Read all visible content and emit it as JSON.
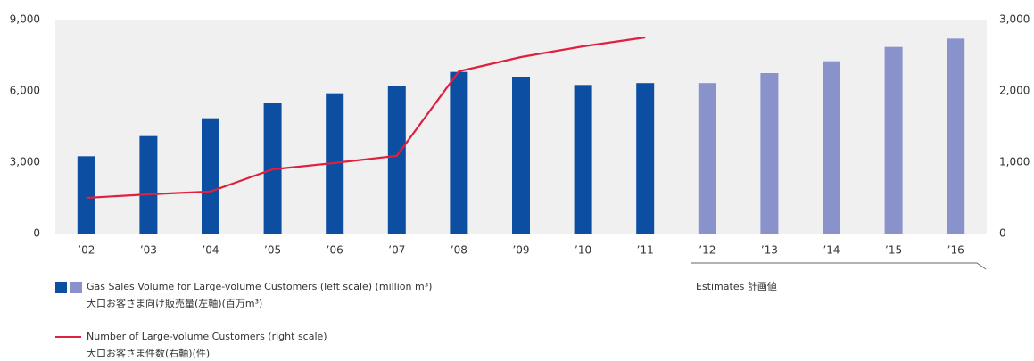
{
  "chart_data": {
    "type": "bar-line",
    "categories": [
      "’02",
      "’03",
      "’04",
      "’05",
      "’06",
      "’07",
      "’08",
      "’09",
      "’10",
      "’11",
      "’12",
      "’13",
      "’14",
      "’15",
      "’16"
    ],
    "series": [
      {
        "name": "Gas Sales Volume for Large-volume Customers (left scale) (million m³)",
        "name_ja": "大口お客さま向け販売量(左軸)(百万m³)",
        "type": "bar",
        "axis": "y",
        "colors": [
          "#0b4ea2",
          "#0b4ea2",
          "#0b4ea2",
          "#0b4ea2",
          "#0b4ea2",
          "#0b4ea2",
          "#0b4ea2",
          "#0b4ea2",
          "#0b4ea2",
          "#0b4ea2",
          "#8992cb",
          "#8992cb",
          "#8992cb",
          "#8992cb",
          "#8992cb"
        ],
        "values": [
          3250,
          4100,
          4850,
          5500,
          5900,
          6200,
          6800,
          6600,
          6250,
          6330,
          6330,
          6750,
          7250,
          7850,
          8200
        ]
      },
      {
        "name": "Number of Large-volume Customers (right scale)",
        "name_ja": "大口お客さま件数(右軸)(件)",
        "type": "line",
        "axis": "y2",
        "color": "#e0203f",
        "values": [
          500,
          550,
          590,
          900,
          990,
          1090,
          2275,
          2475,
          2625,
          2750,
          null,
          null,
          null,
          null,
          null
        ]
      }
    ],
    "ylim": [
      0,
      9000
    ],
    "yticks": [
      0,
      {
        "value": 3000,
        "label": "3,000"
      },
      {
        "value": 6000,
        "label": "6,000"
      },
      {
        "value": 9000,
        "label": "9,000"
      }
    ],
    "y2lim": [
      0,
      3000
    ],
    "y2ticks": [
      0,
      {
        "value": 1000,
        "label": "1,000"
      },
      {
        "value": 2000,
        "label": "2,000"
      },
      {
        "value": 3000,
        "label": "3,000"
      }
    ],
    "annotation": "Estimates 計画値",
    "grid": false
  }
}
